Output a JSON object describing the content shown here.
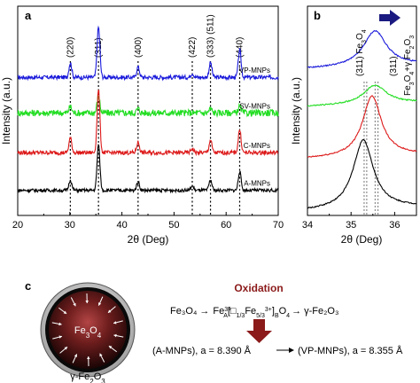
{
  "chart_data": [
    {
      "panel": "a",
      "type": "line",
      "xlabel": "2θ (Deg)",
      "ylabel": "Intensity (a.u.)",
      "xlim": [
        20,
        70
      ],
      "xticks": [
        20,
        30,
        40,
        50,
        60,
        70
      ],
      "grid": false,
      "reference_lines": [
        {
          "x": 30.1,
          "label": "(220)"
        },
        {
          "x": 35.5,
          "label": "(311)"
        },
        {
          "x": 43.1,
          "label": "(400)"
        },
        {
          "x": 53.5,
          "label": "(422)"
        },
        {
          "x": 57.0,
          "label": "(333) (511)"
        },
        {
          "x": 62.6,
          "label": "(440)"
        }
      ],
      "series": [
        {
          "name": "VP-MNPs",
          "color": "#1a1adb",
          "baseline": 0.66,
          "noise": 0.01,
          "peaks": [
            [
              30.1,
              0.07
            ],
            [
              35.5,
              0.24
            ],
            [
              43.1,
              0.05
            ],
            [
              53.5,
              0.02
            ],
            [
              57.0,
              0.07
            ],
            [
              62.6,
              0.13
            ]
          ]
        },
        {
          "name": "SV-MNPs",
          "color": "#22dd22",
          "baseline": 0.49,
          "noise": 0.016,
          "peaks": [
            [
              30.1,
              0.03
            ],
            [
              35.5,
              0.08
            ],
            [
              43.1,
              0.02
            ],
            [
              57.0,
              0.02
            ],
            [
              62.6,
              0.03
            ]
          ]
        },
        {
          "name": "C-MNPs",
          "color": "#dd1a1a",
          "baseline": 0.3,
          "noise": 0.01,
          "peaks": [
            [
              30.1,
              0.07
            ],
            [
              35.5,
              0.3
            ],
            [
              43.1,
              0.05
            ],
            [
              53.5,
              0.02
            ],
            [
              57.0,
              0.06
            ],
            [
              62.6,
              0.11
            ]
          ]
        },
        {
          "name": "A-MNPs",
          "color": "#000000",
          "baseline": 0.12,
          "noise": 0.008,
          "peaks": [
            [
              30.1,
              0.05
            ],
            [
              35.5,
              0.22
            ],
            [
              43.1,
              0.04
            ],
            [
              53.5,
              0.02
            ],
            [
              57.0,
              0.05
            ],
            [
              62.6,
              0.09
            ]
          ]
        }
      ]
    },
    {
      "panel": "b",
      "type": "line",
      "xlabel": "2θ (Deg)",
      "ylabel": "Intensity (a.u.)",
      "xlim": [
        34,
        36.5
      ],
      "xticks": [
        34,
        35,
        36
      ],
      "grid": false,
      "reference_lines": [
        {
          "x": 35.3,
          "label": "(311) Fe₃O₄"
        },
        {
          "x": 35.55,
          "label": "(311) Fe₃O₄+γ Fe₂O₃"
        }
      ],
      "peak_label_1": "(311) Fe",
      "peak_label_1_sub": "3",
      "peak_label_1_end": "O",
      "peak_label_1_sub2": "4",
      "peak_label_2a": "(311)",
      "peak_label_2b": "Fe",
      "peak_label_2b_sub": "3",
      "peak_label_2c": "O",
      "peak_label_2c_sub": "4",
      "peak_label_2d": "+γ Fe",
      "peak_label_2d_sub": "2",
      "peak_label_2e": "O",
      "peak_label_2e_sub": "3",
      "series": [
        {
          "color": "#1a1adb",
          "baseline": 0.7,
          "center": 35.55,
          "height": 0.17,
          "width": 0.32
        },
        {
          "color": "#22dd22",
          "baseline": 0.52,
          "center": 35.55,
          "height": 0.09,
          "width": 0.32
        },
        {
          "color": "#dd1a1a",
          "baseline": 0.27,
          "center": 35.48,
          "height": 0.29,
          "width": 0.26
        },
        {
          "color": "#000000",
          "baseline": 0.02,
          "center": 35.28,
          "height": 0.33,
          "width": 0.28
        }
      ]
    }
  ],
  "labels": {
    "panel_a": "a",
    "panel_b": "b",
    "panel_c": "c",
    "xlabel_a": "2θ (Deg)",
    "xlabel_b": "2θ (Deg)",
    "ylabel_a": "Intensity (a.u.)",
    "ylabel_b": "Intensity (a.u.)"
  },
  "scheme": {
    "oxidation": "Oxidation",
    "core_fe": "Fe",
    "core_sub3": "3",
    "core_o": "O",
    "core_sub4": "4",
    "shell_pre": "γ-Fe",
    "shell_sub2": "2",
    "shell_o": "O",
    "shell_sub3": "3",
    "eq_fe3o4": "Fe₃O₄",
    "eq_arrow": "→",
    "eq_part1": "Fe",
    "eq_sup1": "3+",
    "eq_subA": "A",
    "eq_bracket": "[□",
    "eq_sub13": "1/3",
    "eq_fe2": "Fe",
    "eq_sub53": "5/3",
    "eq_sup2": "3+",
    "eq_close": "]",
    "eq_subB": "B",
    "eq_o4": "O",
    "eq_sub4": "4",
    "eq_gamma": "→ γ-Fe₂O₃",
    "lattice_left": "(A-MNPs), a = 8.390 Å",
    "lattice_right": "(VP-MNPs), a = 8.355 Å",
    "accent_color": "#8b1a1a",
    "arrow_color": "#1a1a80"
  }
}
